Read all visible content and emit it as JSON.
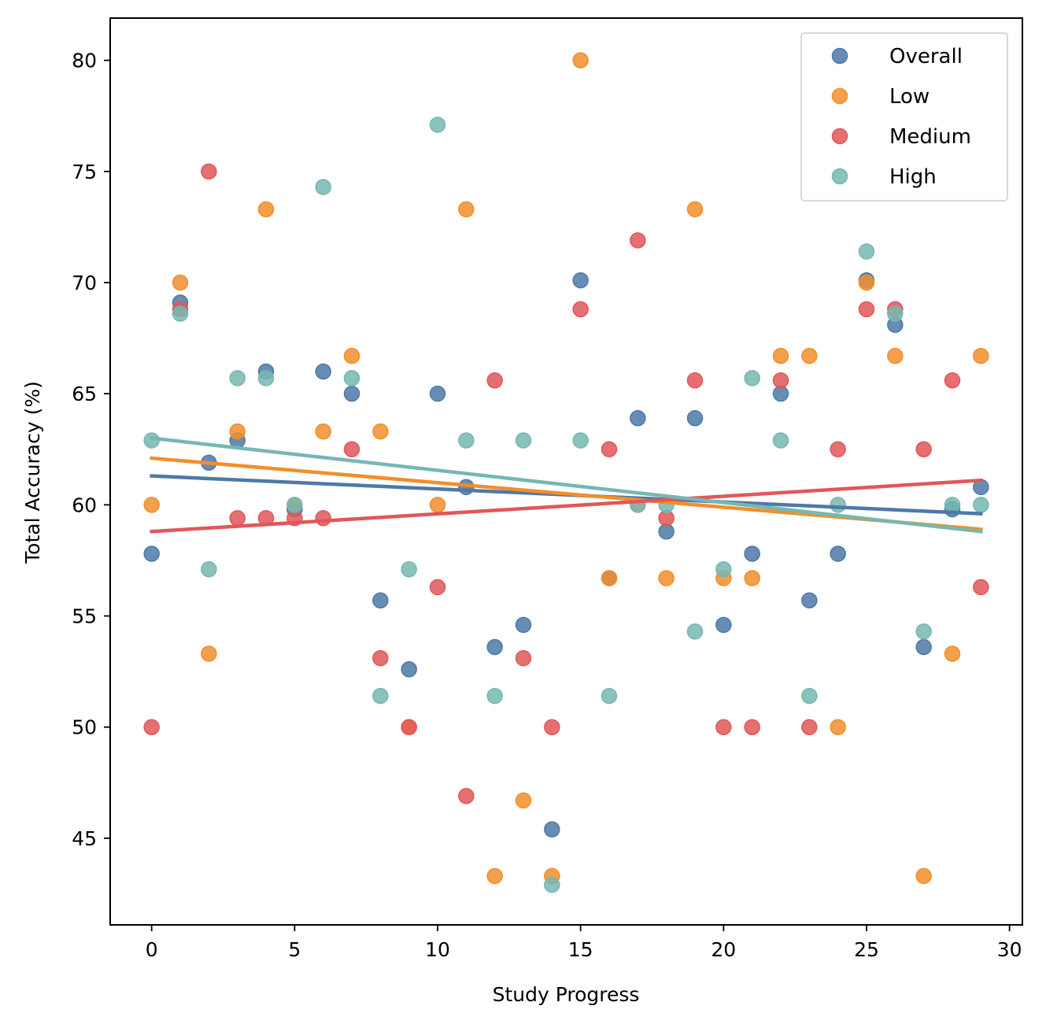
{
  "chart_data": {
    "type": "scatter",
    "title": "",
    "xlabel": "Study Progress",
    "ylabel": "Total Accuracy (%)",
    "xlim": [
      -1.45,
      30.45
    ],
    "ylim": [
      41.1,
      81.9
    ],
    "xticks": [
      0,
      5,
      10,
      15,
      20,
      25,
      30
    ],
    "yticks": [
      45,
      50,
      55,
      60,
      65,
      70,
      75,
      80
    ],
    "grid": false,
    "legend_position": "top-right",
    "series": [
      {
        "name": "Overall",
        "color": "#4e79a7",
        "points": [
          [
            0,
            57.8
          ],
          [
            1,
            69.1
          ],
          [
            2,
            61.9
          ],
          [
            3,
            62.9
          ],
          [
            4,
            66.0
          ],
          [
            5,
            59.8
          ],
          [
            6,
            66.0
          ],
          [
            7,
            65.0
          ],
          [
            8,
            55.7
          ],
          [
            9,
            52.6
          ],
          [
            10,
            65.0
          ],
          [
            11,
            60.8
          ],
          [
            12,
            53.6
          ],
          [
            13,
            54.6
          ],
          [
            14,
            45.4
          ],
          [
            15,
            70.1
          ],
          [
            16,
            56.7
          ],
          [
            17,
            63.9
          ],
          [
            18,
            58.8
          ],
          [
            19,
            63.9
          ],
          [
            20,
            54.6
          ],
          [
            21,
            57.8
          ],
          [
            22,
            65.0
          ],
          [
            23,
            55.7
          ],
          [
            24,
            57.8
          ],
          [
            25,
            70.1
          ],
          [
            26,
            68.1
          ],
          [
            27,
            53.6
          ],
          [
            28,
            59.8
          ],
          [
            29,
            60.8
          ]
        ],
        "trend": {
          "x": [
            0,
            29
          ],
          "y": [
            61.3,
            59.6
          ]
        }
      },
      {
        "name": "Low",
        "color": "#f28e2b",
        "points": [
          [
            0,
            60.0
          ],
          [
            1,
            70.0
          ],
          [
            2,
            53.3
          ],
          [
            3,
            63.3
          ],
          [
            4,
            73.3
          ],
          [
            5,
            60.0
          ],
          [
            6,
            63.3
          ],
          [
            7,
            66.7
          ],
          [
            8,
            63.3
          ],
          [
            9,
            50.0
          ],
          [
            10,
            60.0
          ],
          [
            11,
            73.3
          ],
          [
            12,
            43.3
          ],
          [
            13,
            46.7
          ],
          [
            14,
            43.3
          ],
          [
            15,
            80.0
          ],
          [
            16,
            56.7
          ],
          [
            17,
            60.0
          ],
          [
            18,
            56.7
          ],
          [
            19,
            73.3
          ],
          [
            20,
            56.7
          ],
          [
            21,
            56.7
          ],
          [
            22,
            66.7
          ],
          [
            23,
            66.7
          ],
          [
            24,
            50.0
          ],
          [
            25,
            70.0
          ],
          [
            26,
            66.7
          ],
          [
            27,
            43.3
          ],
          [
            28,
            53.3
          ],
          [
            29,
            66.7
          ]
        ],
        "trend": {
          "x": [
            0,
            29
          ],
          "y": [
            62.1,
            58.9
          ]
        }
      },
      {
        "name": "Medium",
        "color": "#e15759",
        "points": [
          [
            0,
            50.0
          ],
          [
            1,
            68.8
          ],
          [
            2,
            75.0
          ],
          [
            3,
            59.4
          ],
          [
            4,
            59.4
          ],
          [
            5,
            59.4
          ],
          [
            6,
            59.4
          ],
          [
            7,
            62.5
          ],
          [
            8,
            53.1
          ],
          [
            9,
            50.0
          ],
          [
            10,
            56.3
          ],
          [
            11,
            46.9
          ],
          [
            12,
            65.6
          ],
          [
            13,
            53.1
          ],
          [
            14,
            50.0
          ],
          [
            15,
            68.8
          ],
          [
            16,
            62.5
          ],
          [
            17,
            71.9
          ],
          [
            18,
            59.4
          ],
          [
            19,
            65.6
          ],
          [
            20,
            50.0
          ],
          [
            21,
            50.0
          ],
          [
            22,
            65.6
          ],
          [
            23,
            50.0
          ],
          [
            24,
            62.5
          ],
          [
            25,
            68.8
          ],
          [
            26,
            68.8
          ],
          [
            27,
            62.5
          ],
          [
            28,
            65.6
          ],
          [
            29,
            56.3
          ]
        ],
        "trend": {
          "x": [
            0,
            29
          ],
          "y": [
            58.8,
            61.1
          ]
        }
      },
      {
        "name": "High",
        "color": "#76b7b2",
        "points": [
          [
            0,
            62.9
          ],
          [
            1,
            68.6
          ],
          [
            2,
            57.1
          ],
          [
            3,
            65.7
          ],
          [
            4,
            65.7
          ],
          [
            5,
            60.0
          ],
          [
            6,
            74.3
          ],
          [
            7,
            65.7
          ],
          [
            8,
            51.4
          ],
          [
            9,
            57.1
          ],
          [
            10,
            77.1
          ],
          [
            11,
            62.9
          ],
          [
            12,
            51.4
          ],
          [
            13,
            62.9
          ],
          [
            14,
            42.9
          ],
          [
            15,
            62.9
          ],
          [
            16,
            51.4
          ],
          [
            17,
            60.0
          ],
          [
            18,
            60.0
          ],
          [
            19,
            54.3
          ],
          [
            20,
            57.1
          ],
          [
            21,
            65.7
          ],
          [
            22,
            62.9
          ],
          [
            23,
            51.4
          ],
          [
            24,
            60.0
          ],
          [
            25,
            71.4
          ],
          [
            26,
            68.6
          ],
          [
            27,
            54.3
          ],
          [
            28,
            60.0
          ],
          [
            29,
            60.0
          ]
        ],
        "trend": {
          "x": [
            0,
            29
          ],
          "y": [
            63.0,
            58.8
          ]
        }
      }
    ]
  }
}
